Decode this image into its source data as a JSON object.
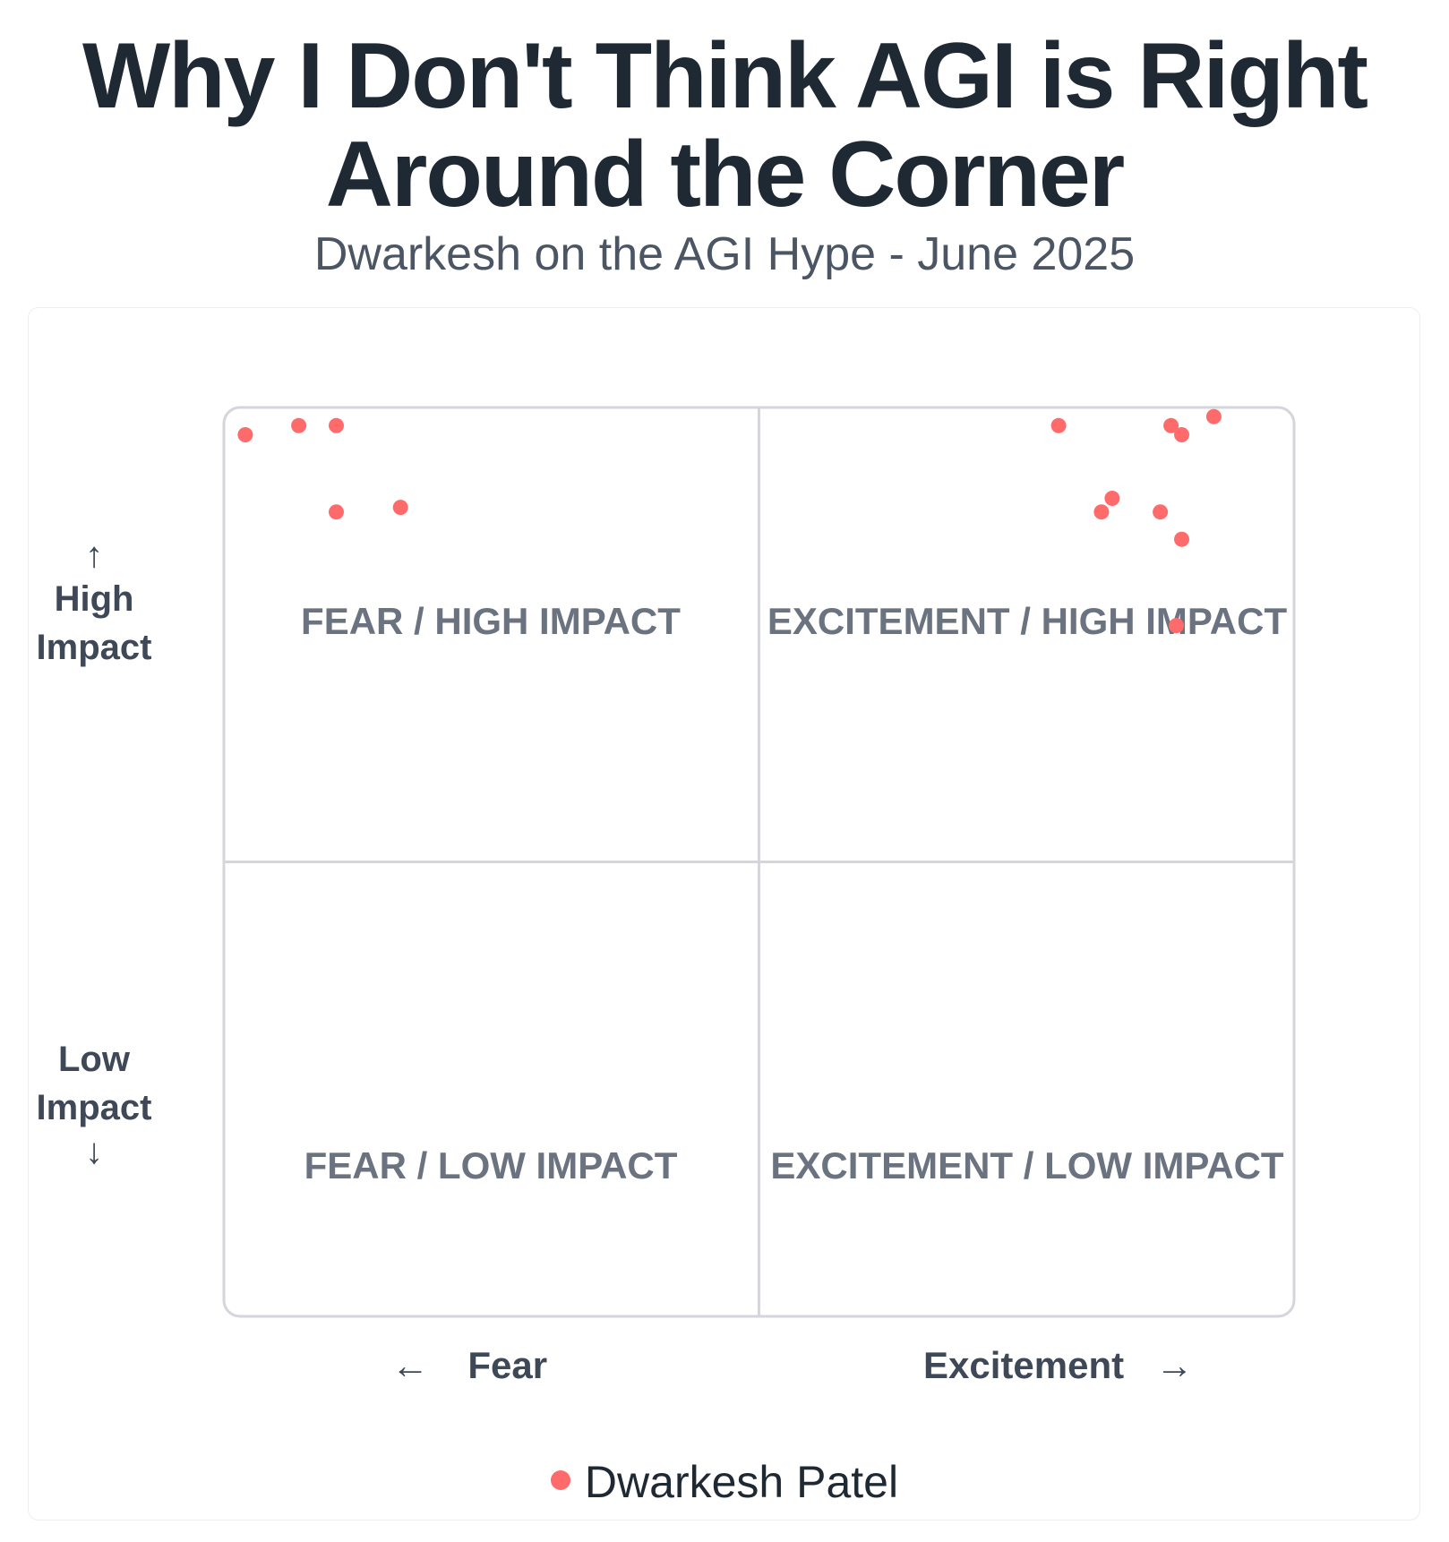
{
  "title_line1": "Why I Don't Think AGI is Right",
  "title_line2": "Around the Corner",
  "subtitle": "Dwarkesh on the AGI Hype - June 2025",
  "colors": {
    "point": "#ff6b6b",
    "grid": "#d4d6dc",
    "quadrant_label": "#6b7280"
  },
  "y_axis": {
    "high_arrow": "↑",
    "high_line1": "High",
    "high_line2": "Impact",
    "low_line1": "Low",
    "low_line2": "Impact",
    "low_arrow": "↓"
  },
  "x_axis": {
    "fear_arrow": "←",
    "fear_label": "Fear",
    "excitement_label": "Excitement",
    "excitement_arrow": "→"
  },
  "quadrants": {
    "top_left": "FEAR / HIGH IMPACT",
    "top_right": "EXCITEMENT / HIGH IMPACT",
    "bottom_left": "FEAR / LOW IMPACT",
    "bottom_right": "EXCITEMENT / LOW IMPACT"
  },
  "legend": {
    "series_name": "Dwarkesh Patel"
  },
  "chart_data": {
    "type": "scatter",
    "xlim": [
      -1,
      1
    ],
    "ylim": [
      -1,
      1
    ],
    "x_label": "Fear ← → Excitement",
    "y_label": "Low Impact ↓ ↑ High Impact",
    "grid": "quadrants",
    "legend_position": "bottom",
    "series": [
      {
        "name": "Dwarkesh Patel",
        "points": [
          {
            "x": -0.96,
            "y": 0.94
          },
          {
            "x": -0.86,
            "y": 0.96
          },
          {
            "x": -0.79,
            "y": 0.96
          },
          {
            "x": -0.79,
            "y": 0.77
          },
          {
            "x": -0.67,
            "y": 0.78
          },
          {
            "x": 0.56,
            "y": 0.96
          },
          {
            "x": 0.77,
            "y": 0.96
          },
          {
            "x": 0.79,
            "y": 0.94
          },
          {
            "x": 0.85,
            "y": 0.98
          },
          {
            "x": 0.66,
            "y": 0.8
          },
          {
            "x": 0.64,
            "y": 0.77
          },
          {
            "x": 0.75,
            "y": 0.77
          },
          {
            "x": 0.79,
            "y": 0.71
          },
          {
            "x": 0.78,
            "y": 0.52
          }
        ]
      }
    ]
  }
}
